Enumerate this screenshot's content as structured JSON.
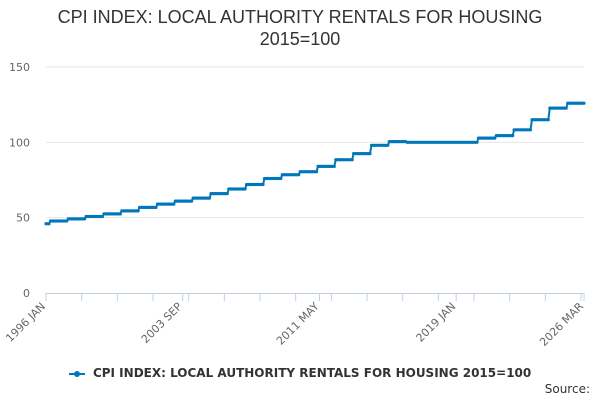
{
  "chart_data": {
    "type": "line",
    "title_lines": [
      "CPI INDEX: LOCAL AUTHORITY RENTALS FOR HOUSING",
      "2015=100"
    ],
    "xlabel": "",
    "ylabel": "",
    "ylim": [
      0,
      150
    ],
    "yticks": [
      "0",
      "50",
      "100",
      "150"
    ],
    "xlim": [
      "1996-01",
      "2026-03"
    ],
    "xtick_labels": [
      "1996 JAN",
      "2003 SEP",
      "2011 MAY",
      "2019 JAN",
      "2026 MAR"
    ],
    "grid": true,
    "legend_position": "bottom",
    "series": [
      {
        "name": "CPI INDEX: LOCAL AUTHORITY RENTALS FOR HOUSING 2015=100",
        "color": "#0077bb",
        "marker": "dot",
        "steps": [
          {
            "from": "1996-01",
            "value": 46.0
          },
          {
            "from": "1996-04",
            "value": 47.8
          },
          {
            "from": "1997-04",
            "value": 49.2
          },
          {
            "from": "1998-04",
            "value": 50.8
          },
          {
            "from": "1999-04",
            "value": 52.5
          },
          {
            "from": "2000-04",
            "value": 54.5
          },
          {
            "from": "2001-04",
            "value": 56.8
          },
          {
            "from": "2002-04",
            "value": 59.0
          },
          {
            "from": "2003-04",
            "value": 61.0
          },
          {
            "from": "2004-04",
            "value": 63.0
          },
          {
            "from": "2005-04",
            "value": 66.0
          },
          {
            "from": "2006-04",
            "value": 69.0
          },
          {
            "from": "2007-04",
            "value": 72.0
          },
          {
            "from": "2008-04",
            "value": 76.0
          },
          {
            "from": "2009-04",
            "value": 78.5
          },
          {
            "from": "2010-04",
            "value": 80.5
          },
          {
            "from": "2011-04",
            "value": 84.0
          },
          {
            "from": "2012-04",
            "value": 88.5
          },
          {
            "from": "2013-04",
            "value": 92.5
          },
          {
            "from": "2014-04",
            "value": 98.0
          },
          {
            "from": "2015-04",
            "value": 100.5
          },
          {
            "from": "2016-04",
            "value": 100.0
          },
          {
            "from": "2020-04",
            "value": 102.8
          },
          {
            "from": "2021-04",
            "value": 104.5
          },
          {
            "from": "2022-04",
            "value": 108.3
          },
          {
            "from": "2023-04",
            "value": 115.0
          },
          {
            "from": "2024-04",
            "value": 122.7
          },
          {
            "from": "2025-04",
            "value": 126.0
          }
        ]
      }
    ]
  },
  "source_label": "Source:"
}
